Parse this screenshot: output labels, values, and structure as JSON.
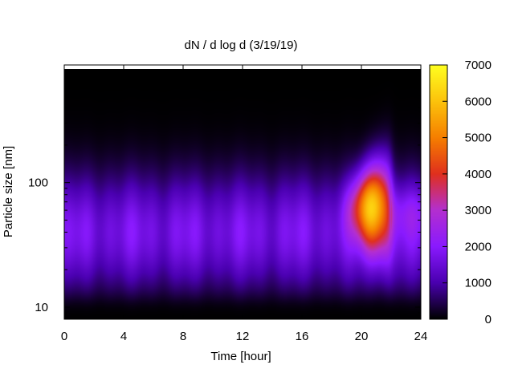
{
  "chart_data": {
    "type": "heatmap",
    "title": "dN / d log d (3/19/19)",
    "xlabel": "Time [hour]",
    "ylabel": "Particle size [nm]",
    "x_ticks": [
      0,
      4,
      8,
      12,
      16,
      20,
      24
    ],
    "xlim": [
      0,
      24
    ],
    "y_scale": "log",
    "y_ticks": [
      {
        "value": 10,
        "label": "10"
      },
      {
        "value": 100,
        "label": "100"
      }
    ],
    "ylim": [
      8,
      880
    ],
    "colorbar": {
      "ticks": [
        0,
        1000,
        2000,
        3000,
        4000,
        5000,
        6000,
        7000
      ],
      "range": [
        0,
        7000
      ],
      "colormap": [
        "#000000",
        "#4a00b0",
        "#8a1aff",
        "#b42fd0",
        "#e0301e",
        "#f67f00",
        "#fcc30c",
        "#ffff20"
      ]
    },
    "features": {
      "background_band": {
        "center_nm": 40,
        "peak_value": 1900
      },
      "hotspot": {
        "center_time_h": 20.8,
        "center_nm": 62,
        "peak_value": 6500,
        "time_range_h": [
          18.2,
          22.1
        ]
      }
    }
  }
}
